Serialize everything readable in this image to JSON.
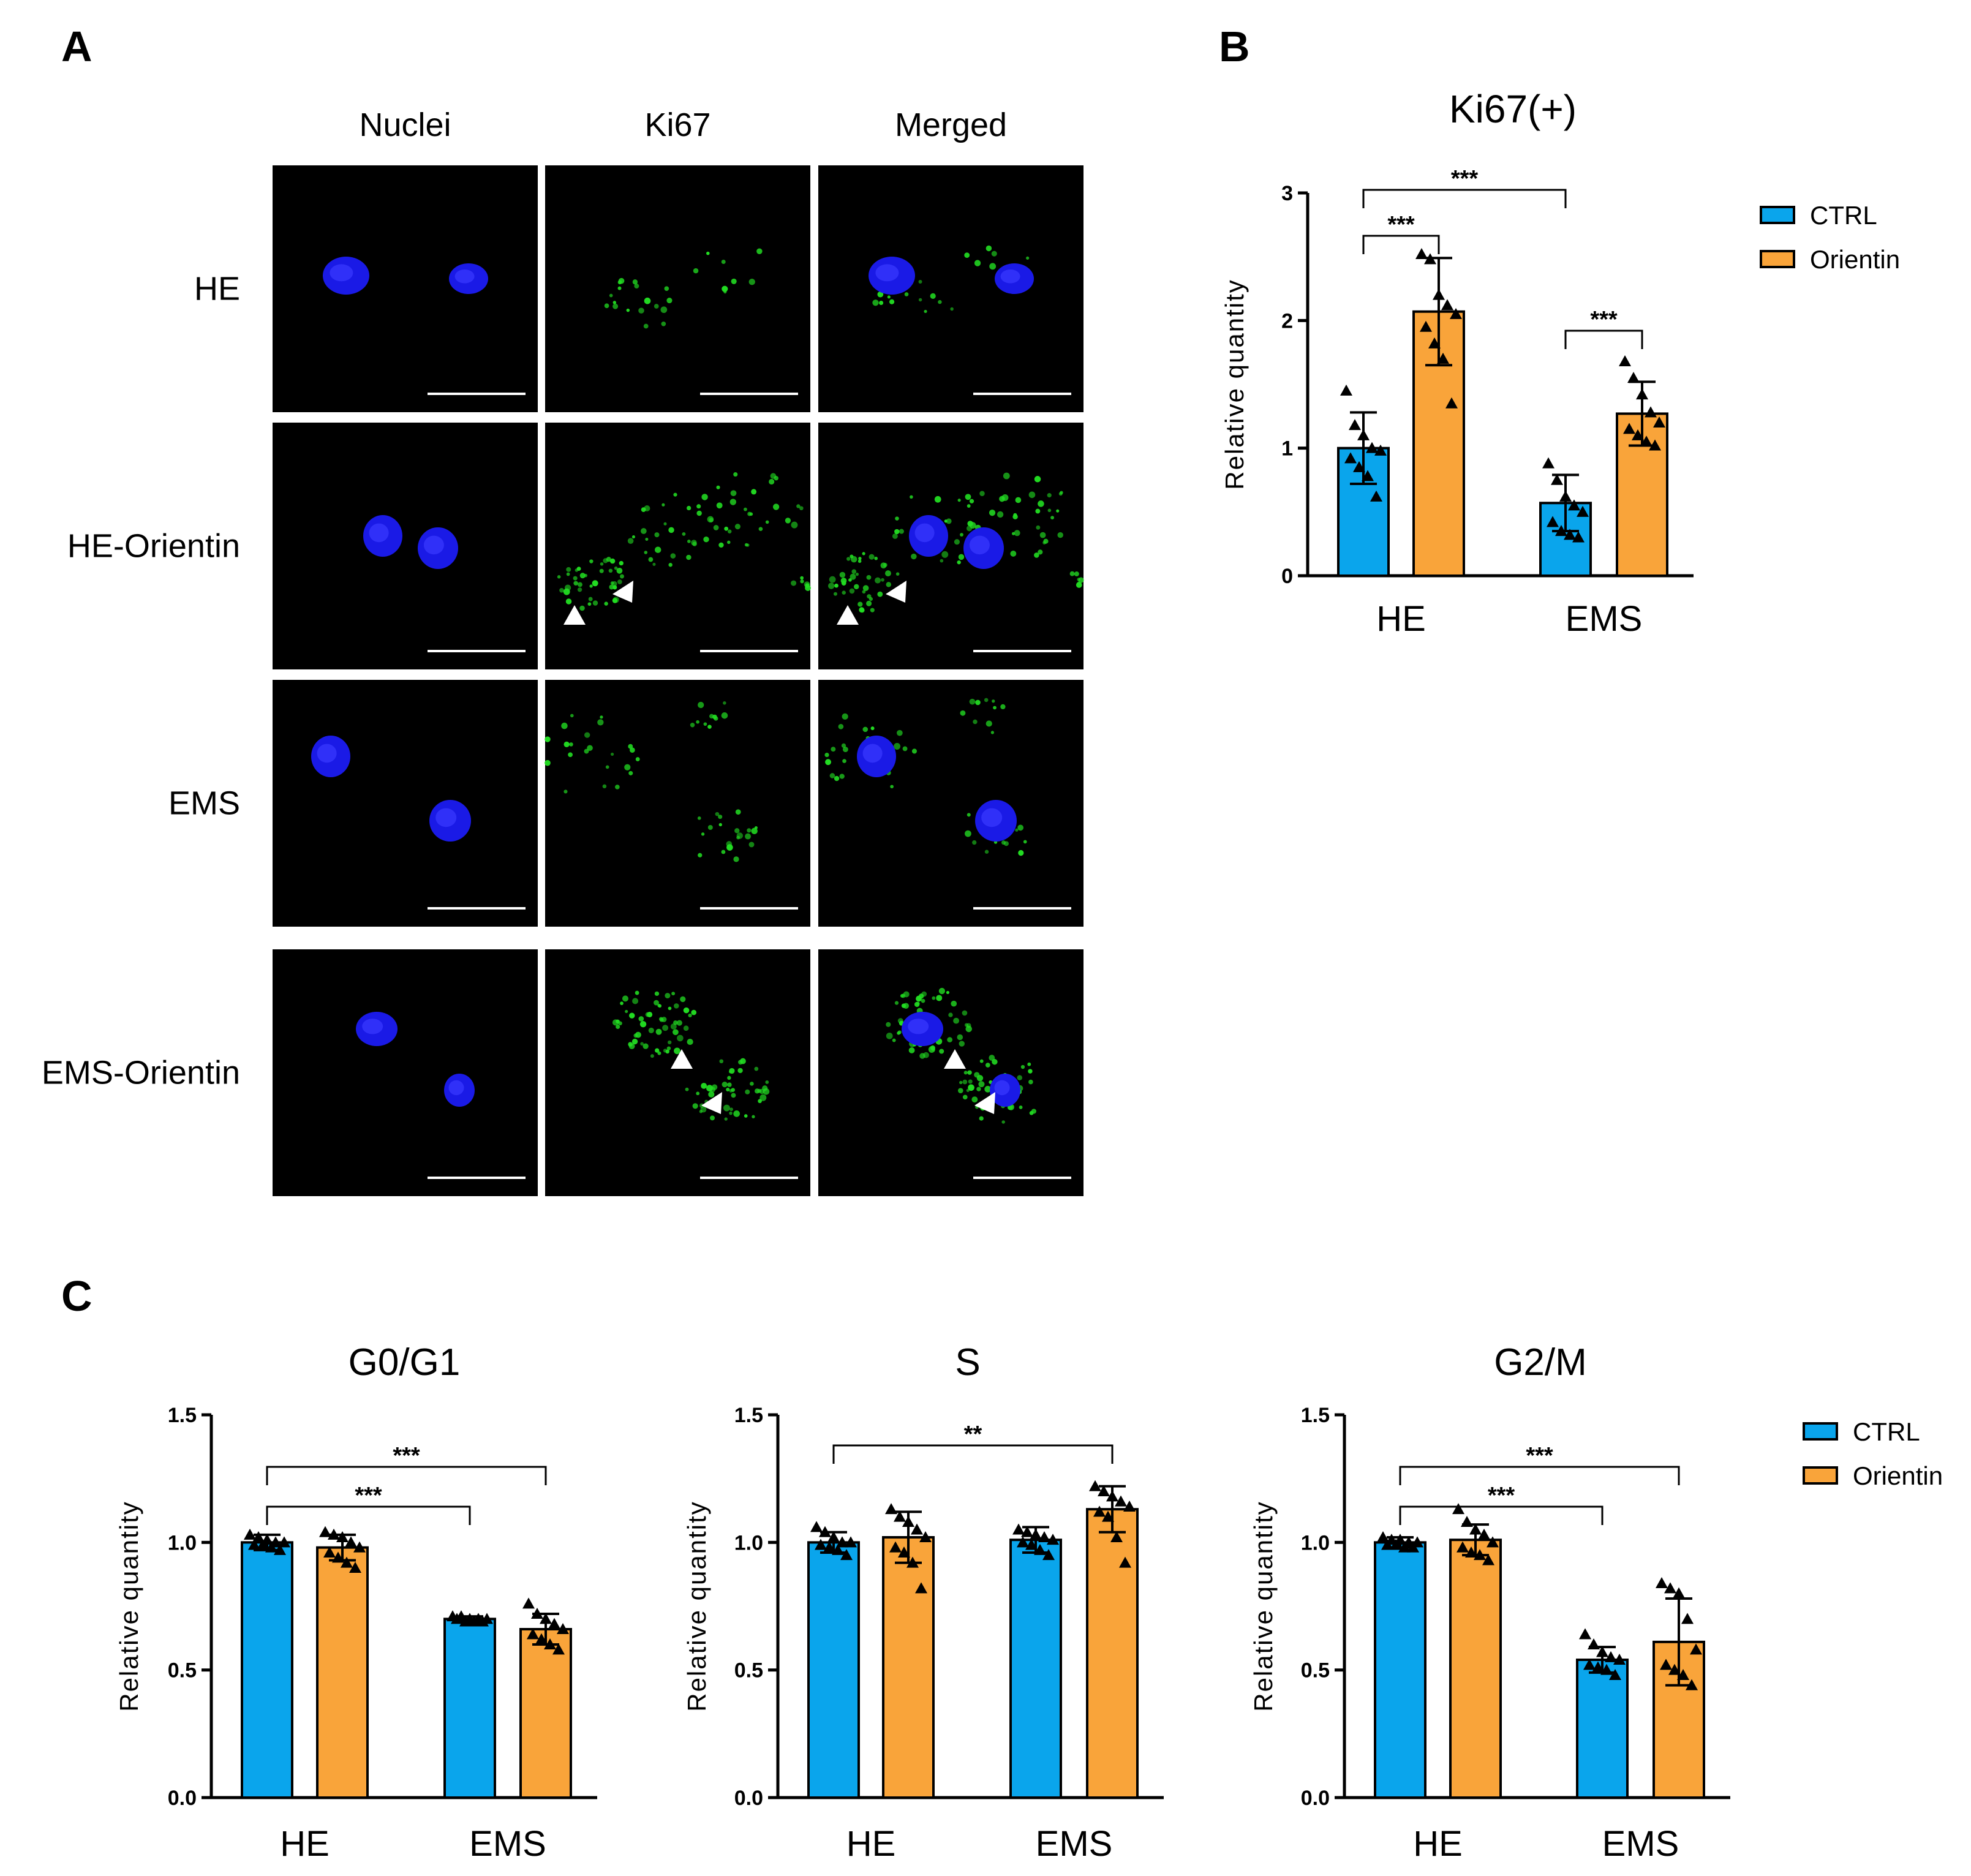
{
  "panels": {
    "a": "A",
    "b": "B",
    "c": "C"
  },
  "micrograph": {
    "columns": [
      "Nuclei",
      "Ki67",
      "Merged"
    ],
    "rows": [
      "HE",
      "HE-Orientin",
      "EMS",
      "EMS-Orientin"
    ]
  },
  "legend_items": [
    "CTRL",
    "Orientin"
  ],
  "colors": {
    "ctrl": "#0AA5EC",
    "orientin": "#F9A43A",
    "nucleus": "#1A1AE6",
    "ki67": "#22DD22"
  },
  "chart_data": [
    {
      "type": "bar",
      "title": "Ki67(+)",
      "ylabel": "Relative quantity",
      "categories": [
        "HE",
        "EMS"
      ],
      "ylim": [
        0,
        3
      ],
      "yticks": [
        "0",
        "1",
        "2",
        "3"
      ],
      "series": [
        {
          "name": "CTRL",
          "values": [
            1.0,
            0.57
          ],
          "errors": [
            0.28,
            0.22
          ],
          "points": [
            [
              1.45,
              1.18,
              1.1,
              1.0,
              0.98,
              0.92,
              0.85,
              0.78,
              0.62
            ],
            [
              0.88,
              0.75,
              0.62,
              0.55,
              0.5,
              0.42,
              0.35,
              0.32,
              0.3
            ]
          ]
        },
        {
          "name": "Orientin",
          "values": [
            2.07,
            1.27
          ],
          "errors": [
            0.42,
            0.25
          ],
          "points": [
            [
              2.52,
              2.48,
              2.2,
              2.12,
              2.05,
              1.95,
              1.82,
              1.7,
              1.35
            ],
            [
              1.68,
              1.55,
              1.42,
              1.28,
              1.2,
              1.15,
              1.1,
              1.05,
              1.02
            ]
          ]
        }
      ],
      "significance": [
        {
          "from": "HE-CTRL",
          "to": "HE-Orientin",
          "label": "***"
        },
        {
          "from": "HE-CTRL",
          "to": "EMS-CTRL",
          "label": "***"
        },
        {
          "from": "EMS-CTRL",
          "to": "EMS-Orientin",
          "label": "***"
        }
      ]
    },
    {
      "type": "bar",
      "title": "G0/G1",
      "ylabel": "Relative quantity",
      "categories": [
        "HE",
        "EMS"
      ],
      "ylim": [
        0,
        1.5
      ],
      "yticks": [
        "0.0",
        "0.5",
        "1.0",
        "1.5"
      ],
      "series": [
        {
          "name": "CTRL",
          "values": [
            1.0,
            0.7
          ],
          "errors": [
            0.03,
            0.01
          ],
          "points": [
            [
              1.03,
              1.02,
              1.01,
              1.0,
              1.0,
              0.99,
              0.99,
              0.98,
              0.97
            ],
            [
              0.71,
              0.71,
              0.7,
              0.7,
              0.7,
              0.7,
              0.69,
              0.69,
              0.69
            ]
          ]
        },
        {
          "name": "Orientin",
          "values": [
            0.98,
            0.66
          ],
          "errors": [
            0.05,
            0.06
          ],
          "points": [
            [
              1.04,
              1.03,
              1.02,
              1.0,
              0.98,
              0.96,
              0.94,
              0.92,
              0.9
            ],
            [
              0.76,
              0.72,
              0.7,
              0.68,
              0.66,
              0.64,
              0.62,
              0.6,
              0.58
            ]
          ]
        }
      ],
      "significance": [
        {
          "from": "HE-CTRL",
          "to": "EMS-CTRL",
          "label": "***"
        },
        {
          "from": "HE-CTRL",
          "to": "EMS-Orientin",
          "label": "***"
        }
      ]
    },
    {
      "type": "bar",
      "title": "S",
      "ylabel": "Relative quantity",
      "categories": [
        "HE",
        "EMS"
      ],
      "ylim": [
        0,
        1.5
      ],
      "yticks": [
        "0.0",
        "0.5",
        "1.0",
        "1.5"
      ],
      "series": [
        {
          "name": "CTRL",
          "values": [
            1.0,
            1.01
          ],
          "errors": [
            0.04,
            0.05
          ],
          "points": [
            [
              1.06,
              1.04,
              1.02,
              1.0,
              1.0,
              0.99,
              0.98,
              0.97,
              0.95
            ],
            [
              1.05,
              1.04,
              1.03,
              1.02,
              1.01,
              1.0,
              0.99,
              0.97,
              0.95
            ]
          ]
        },
        {
          "name": "Orientin",
          "values": [
            1.02,
            1.13
          ],
          "errors": [
            0.1,
            0.09
          ],
          "points": [
            [
              1.13,
              1.1,
              1.08,
              1.05,
              1.02,
              0.98,
              0.96,
              0.92,
              0.82
            ],
            [
              1.22,
              1.2,
              1.18,
              1.16,
              1.14,
              1.12,
              1.1,
              1.02,
              0.92
            ]
          ]
        }
      ],
      "significance": [
        {
          "from": "HE-CTRL",
          "to": "EMS-Orientin",
          "label": "**"
        }
      ]
    },
    {
      "type": "bar",
      "title": "G2/M",
      "ylabel": "Relative quantity",
      "categories": [
        "HE",
        "EMS"
      ],
      "ylim": [
        0,
        1.5
      ],
      "yticks": [
        "0.0",
        "0.5",
        "1.0",
        "1.5"
      ],
      "series": [
        {
          "name": "CTRL",
          "values": [
            1.0,
            0.54
          ],
          "errors": [
            0.02,
            0.05
          ],
          "points": [
            [
              1.02,
              1.01,
              1.01,
              1.0,
              1.0,
              0.99,
              0.99,
              0.98,
              0.98
            ],
            [
              0.64,
              0.6,
              0.57,
              0.55,
              0.54,
              0.52,
              0.51,
              0.5,
              0.48
            ]
          ]
        },
        {
          "name": "Orientin",
          "values": [
            1.01,
            0.61
          ],
          "errors": [
            0.06,
            0.17
          ],
          "points": [
            [
              1.13,
              1.08,
              1.05,
              1.03,
              1.0,
              0.98,
              0.96,
              0.95,
              0.93
            ],
            [
              0.84,
              0.82,
              0.8,
              0.7,
              0.58,
              0.52,
              0.5,
              0.48,
              0.44
            ]
          ]
        }
      ],
      "significance": [
        {
          "from": "HE-CTRL",
          "to": "EMS-CTRL",
          "label": "***"
        },
        {
          "from": "HE-CTRL",
          "to": "EMS-Orientin",
          "label": "***"
        }
      ]
    }
  ]
}
